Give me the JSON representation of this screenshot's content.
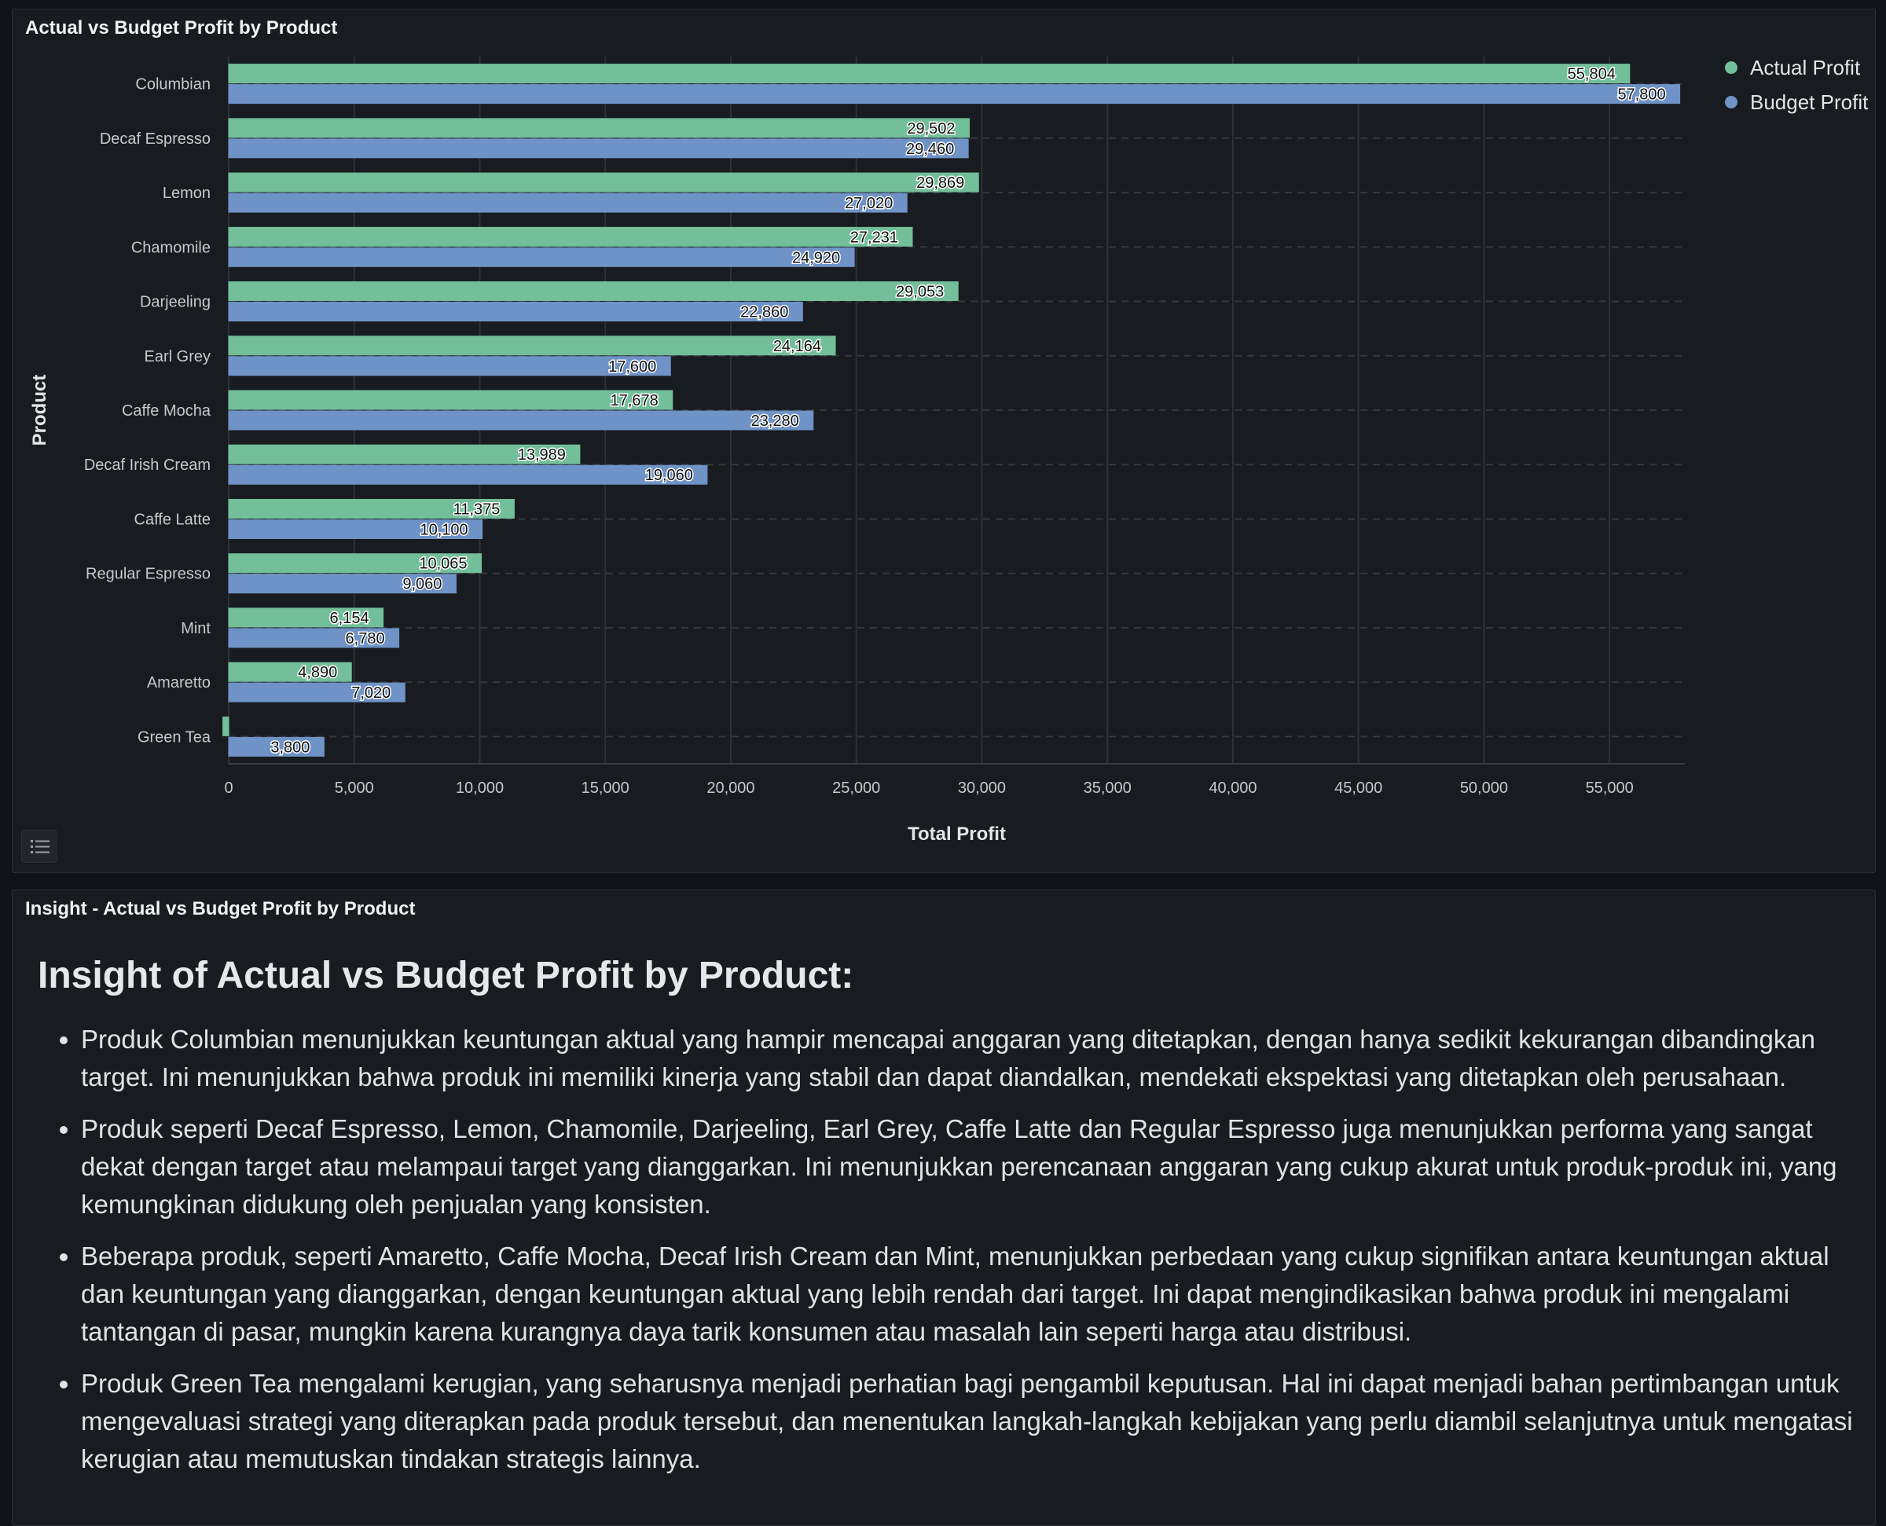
{
  "chart_panel": {
    "title": "Actual vs Budget Profit by Product"
  },
  "chart_data": {
    "type": "bar",
    "orientation": "horizontal",
    "title": "Actual vs Budget Profit by Product",
    "xlabel": "Total Profit",
    "ylabel": "Product",
    "xlim": [
      0,
      58000
    ],
    "xticks": [
      0,
      5000,
      10000,
      15000,
      20000,
      25000,
      30000,
      35000,
      40000,
      45000,
      50000,
      55000
    ],
    "xtick_labels": [
      "0",
      "5,000",
      "10,000",
      "15,000",
      "20,000",
      "25,000",
      "30,000",
      "35,000",
      "40,000",
      "45,000",
      "50,000",
      "55,000"
    ],
    "categories": [
      "Columbian",
      "Decaf Espresso",
      "Lemon",
      "Chamomile",
      "Darjeeling",
      "Earl Grey",
      "Caffe Mocha",
      "Decaf Irish Cream",
      "Caffe Latte",
      "Regular Espresso",
      "Mint",
      "Amaretto",
      "Green Tea"
    ],
    "series": [
      {
        "name": "Actual Profit",
        "color": "#73bf9a",
        "values": [
          55804,
          29502,
          29869,
          27231,
          29053,
          24164,
          17678,
          13989,
          11375,
          10065,
          6154,
          4890,
          -231
        ],
        "labels": [
          "55,804",
          "29,502",
          "29,869",
          "27,231",
          "29,053",
          "24,164",
          "17,678",
          "13,989",
          "11,375",
          "10,065",
          "6,154",
          "4,890",
          ""
        ]
      },
      {
        "name": "Budget Profit",
        "color": "#6f92c7",
        "values": [
          57800,
          29460,
          27020,
          24920,
          22860,
          17600,
          23280,
          19060,
          10100,
          9060,
          6780,
          7020,
          3800
        ],
        "labels": [
          "57,800",
          "29,460",
          "27,020",
          "24,920",
          "22,860",
          "17,600",
          "23,280",
          "19,060",
          "10,100",
          "9,060",
          "6,780",
          "7,020",
          "3,800"
        ]
      }
    ],
    "legend_position": "top-right",
    "grid": true
  },
  "insight_panel": {
    "title": "Insight - Actual vs Budget Profit by Product",
    "heading": "Insight of Actual vs Budget Profit by Product:",
    "bullets": [
      "Produk Columbian menunjukkan keuntungan aktual yang hampir mencapai anggaran yang ditetapkan, dengan hanya sedikit kekurangan dibandingkan target. Ini menunjukkan bahwa produk ini memiliki kinerja yang stabil dan dapat diandalkan, mendekati ekspektasi yang ditetapkan oleh perusahaan.",
      "Produk seperti Decaf Espresso, Lemon, Chamomile, Darjeeling, Earl Grey, Caffe Latte dan Regular Espresso juga menunjukkan performa yang sangat dekat dengan target atau melampaui target yang dianggarkan. Ini menunjukkan perencanaan anggaran yang cukup akurat untuk produk-produk ini, yang kemungkinan didukung oleh penjualan yang konsisten.",
      "Beberapa produk, seperti Amaretto, Caffe Mocha, Decaf Irish Cream dan Mint, menunjukkan perbedaan yang cukup signifikan antara keuntungan aktual dan keuntungan yang dianggarkan, dengan keuntungan aktual yang lebih rendah dari target. Ini dapat mengindikasikan bahwa produk ini mengalami tantangan di pasar, mungkin karena kurangnya daya tarik konsumen atau masalah lain seperti harga atau distribusi.",
      "Produk Green Tea mengalami kerugian, yang seharusnya menjadi perhatian bagi pengambil keputusan. Hal ini dapat menjadi bahan pertimbangan untuk mengevaluasi strategi yang diterapkan pada produk tersebut, dan menentukan langkah-langkah kebijakan yang perlu diambil selanjutnya untuk mengatasi kerugian atau memutuskan tindakan strategis lainnya."
    ]
  }
}
